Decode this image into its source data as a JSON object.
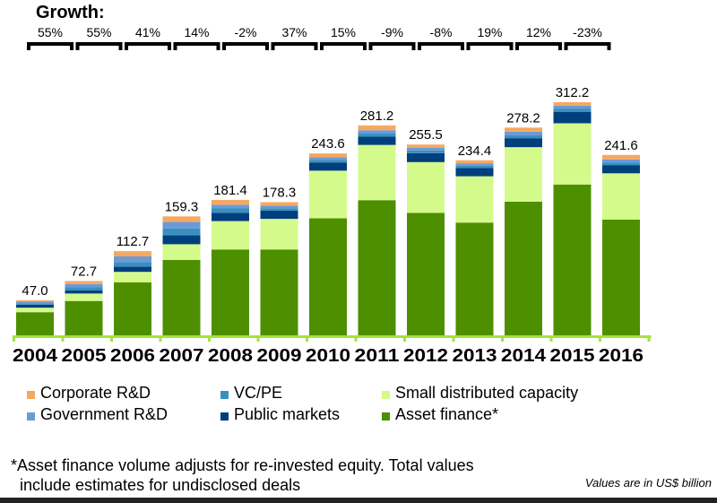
{
  "chart_data": {
    "type": "bar",
    "stacked": true,
    "title": "",
    "xlabel": "",
    "ylabel": "",
    "units_note": "Values are in US$ billion",
    "categories": [
      "2004",
      "2005",
      "2006",
      "2007",
      "2008",
      "2009",
      "2010",
      "2011",
      "2012",
      "2013",
      "2014",
      "2015",
      "2016"
    ],
    "totals": [
      47.0,
      72.7,
      112.7,
      159.3,
      181.4,
      178.3,
      243.6,
      281.2,
      255.5,
      234.4,
      278.2,
      312.2,
      241.6
    ],
    "total_labels": [
      "47.0",
      "72.7",
      "112.7",
      "159.3",
      "181.4",
      "178.3",
      "243.6",
      "281.2",
      "255.5",
      "234.4",
      "278.2",
      "312.2",
      "241.6"
    ],
    "growth_title": "Growth:",
    "growth": [
      "55%",
      "55%",
      "41%",
      "14%",
      "-2%",
      "37%",
      "15%",
      "-9%",
      "-8%",
      "19%",
      "12%",
      "-23%"
    ],
    "series": [
      {
        "name": "Asset finance*",
        "color": "#4e8f00",
        "values": [
          31,
          46,
          71,
          101,
          115,
          115,
          157,
          181,
          164,
          151,
          179,
          202,
          155
        ]
      },
      {
        "name": "Small distributed capacity",
        "color": "#d4fa8c",
        "values": [
          6,
          10,
          14,
          21,
          38,
          41,
          64,
          74,
          68,
          62,
          73,
          82,
          62
        ]
      },
      {
        "name": "Public markets",
        "color": "#003f7d",
        "values": [
          4,
          4,
          7,
          12,
          11,
          11,
          11,
          11,
          12,
          11,
          12,
          15,
          11
        ]
      },
      {
        "name": "VC/PE",
        "color": "#3b8fbf",
        "values": [
          2.0,
          4.2,
          6.2,
          9.3,
          6.4,
          3.3,
          3.6,
          4.2,
          3.5,
          3.4,
          4.2,
          4.2,
          3.6
        ]
      },
      {
        "name": "Government R&D",
        "color": "#6b9ad8",
        "values": [
          2.0,
          4.5,
          7.5,
          8.5,
          4.5,
          3.5,
          3.5,
          4.5,
          3.5,
          3.0,
          4.5,
          4.5,
          4.0
        ]
      },
      {
        "name": "Corporate R&D",
        "color": "#f6a860",
        "values": [
          2.0,
          4.0,
          7.0,
          7.5,
          6.5,
          4.5,
          5.0,
          6.5,
          4.5,
          4.0,
          5.5,
          4.5,
          6.0
        ]
      }
    ],
    "ylim": [
      0,
      320
    ],
    "grid": false,
    "legend_position": "bottom"
  },
  "legend": {
    "items": [
      {
        "label": "Corporate R&D",
        "color": "#f6a860"
      },
      {
        "label": "VC/PE",
        "color": "#3b8fbf"
      },
      {
        "label": "Small distributed capacity",
        "color": "#d4fa8c"
      },
      {
        "label": "Government R&D",
        "color": "#6b9ad8"
      },
      {
        "label": "Public markets",
        "color": "#003f7d"
      },
      {
        "label": "Asset finance*",
        "color": "#4e8f00"
      }
    ]
  },
  "footnote": {
    "line1": "*Asset finance volume adjusts for re-invested equity. Total values",
    "line2": "include estimates for undisclosed deals"
  },
  "axis_color": "#a6e23c"
}
